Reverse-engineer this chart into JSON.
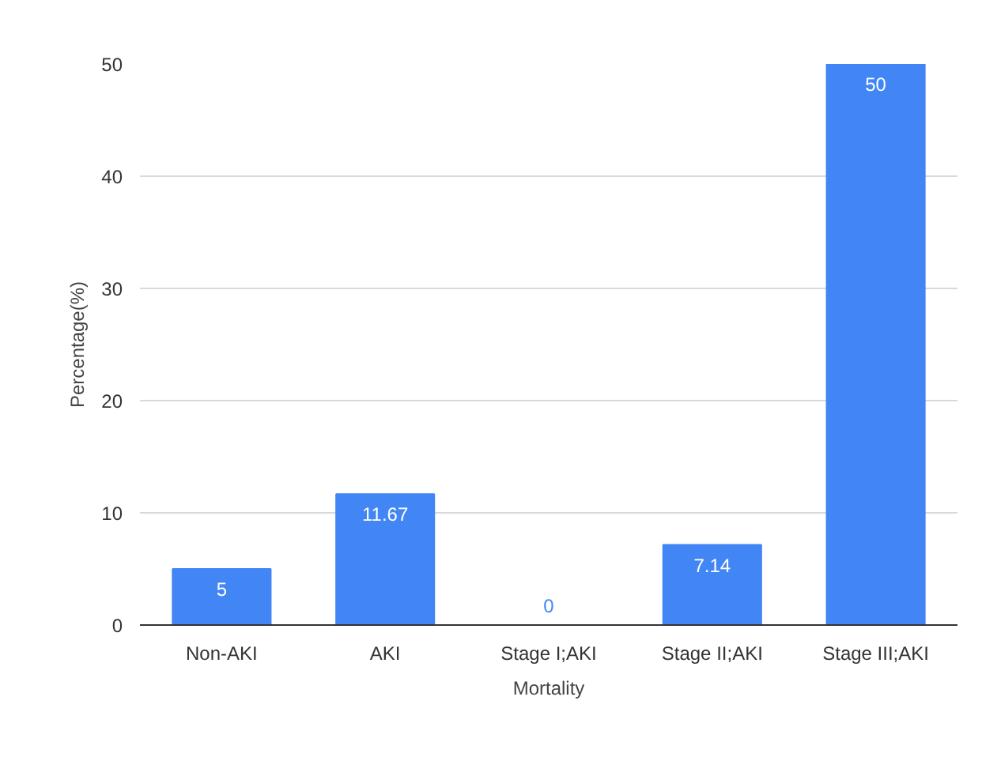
{
  "chart_data": {
    "type": "bar",
    "xlabel": "Mortality",
    "ylabel": "Percentage(%)",
    "categories": [
      "Non-AKI",
      "AKI",
      "Stage I;AKI",
      "Stage II;AKI",
      "Stage III;AKI"
    ],
    "values": [
      5,
      11.67,
      0,
      7.14,
      50
    ],
    "color": "#4285f4",
    "ylim": [
      0,
      50
    ],
    "yticks": [
      0,
      10,
      20,
      30,
      40,
      50
    ],
    "grid": "y",
    "data_labels": true
  }
}
